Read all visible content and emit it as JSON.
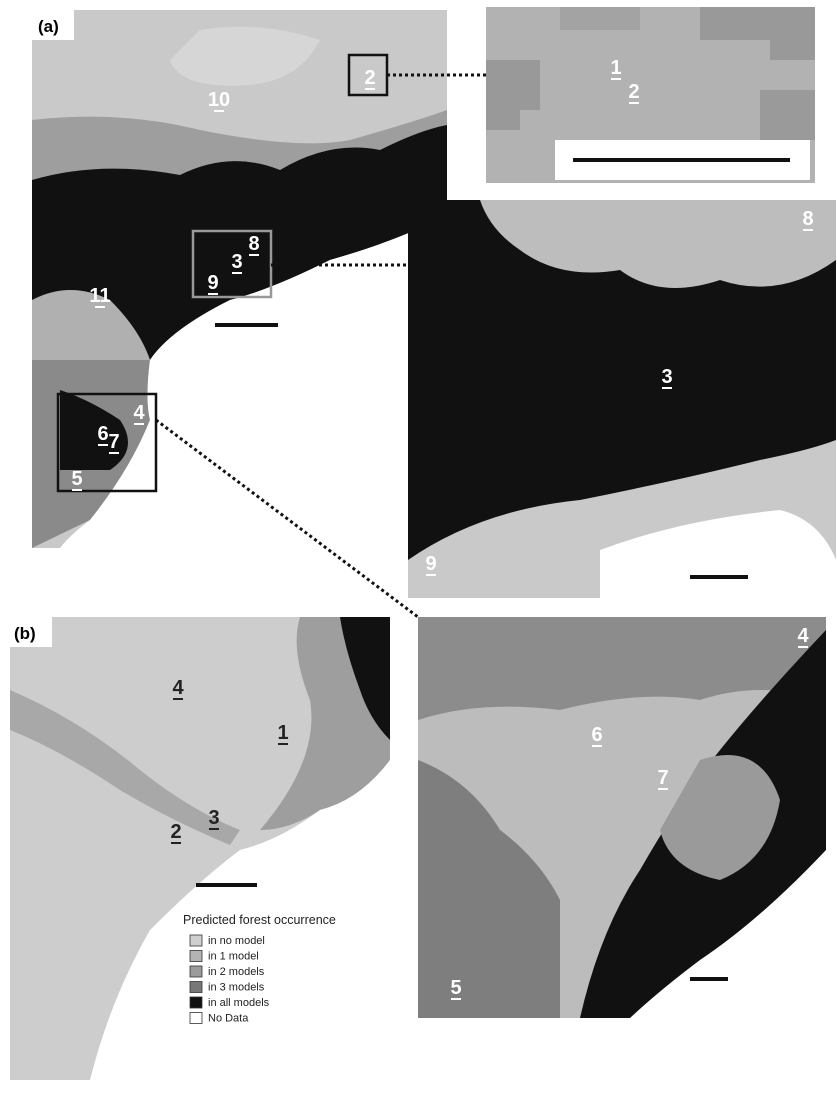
{
  "panels": {
    "a": {
      "label": "(a)",
      "sites": [
        "10",
        "2",
        "8",
        "3",
        "9",
        "11",
        "4",
        "6",
        "7",
        "5"
      ]
    },
    "inset_top": {
      "sites": [
        "1",
        "2"
      ]
    },
    "inset_middle": {
      "sites": [
        "8",
        "3",
        "9"
      ]
    },
    "inset_bottom": {
      "sites": [
        "4",
        "6",
        "7",
        "5"
      ]
    },
    "b": {
      "label": "(b)",
      "sites": [
        "4",
        "1",
        "3",
        "2"
      ]
    }
  },
  "legend": {
    "title": "Predicted forest occurrence",
    "items": [
      {
        "label": "in no model",
        "color": "#cfcfcf"
      },
      {
        "label": "in 1 model",
        "color": "#b4b4b4"
      },
      {
        "label": "in 2 models",
        "color": "#9b9b9b"
      },
      {
        "label": "in 3 models",
        "color": "#777777"
      },
      {
        "label": "in all models",
        "color": "#111111"
      },
      {
        "label": "No Data",
        "color": "#ffffff"
      }
    ]
  }
}
